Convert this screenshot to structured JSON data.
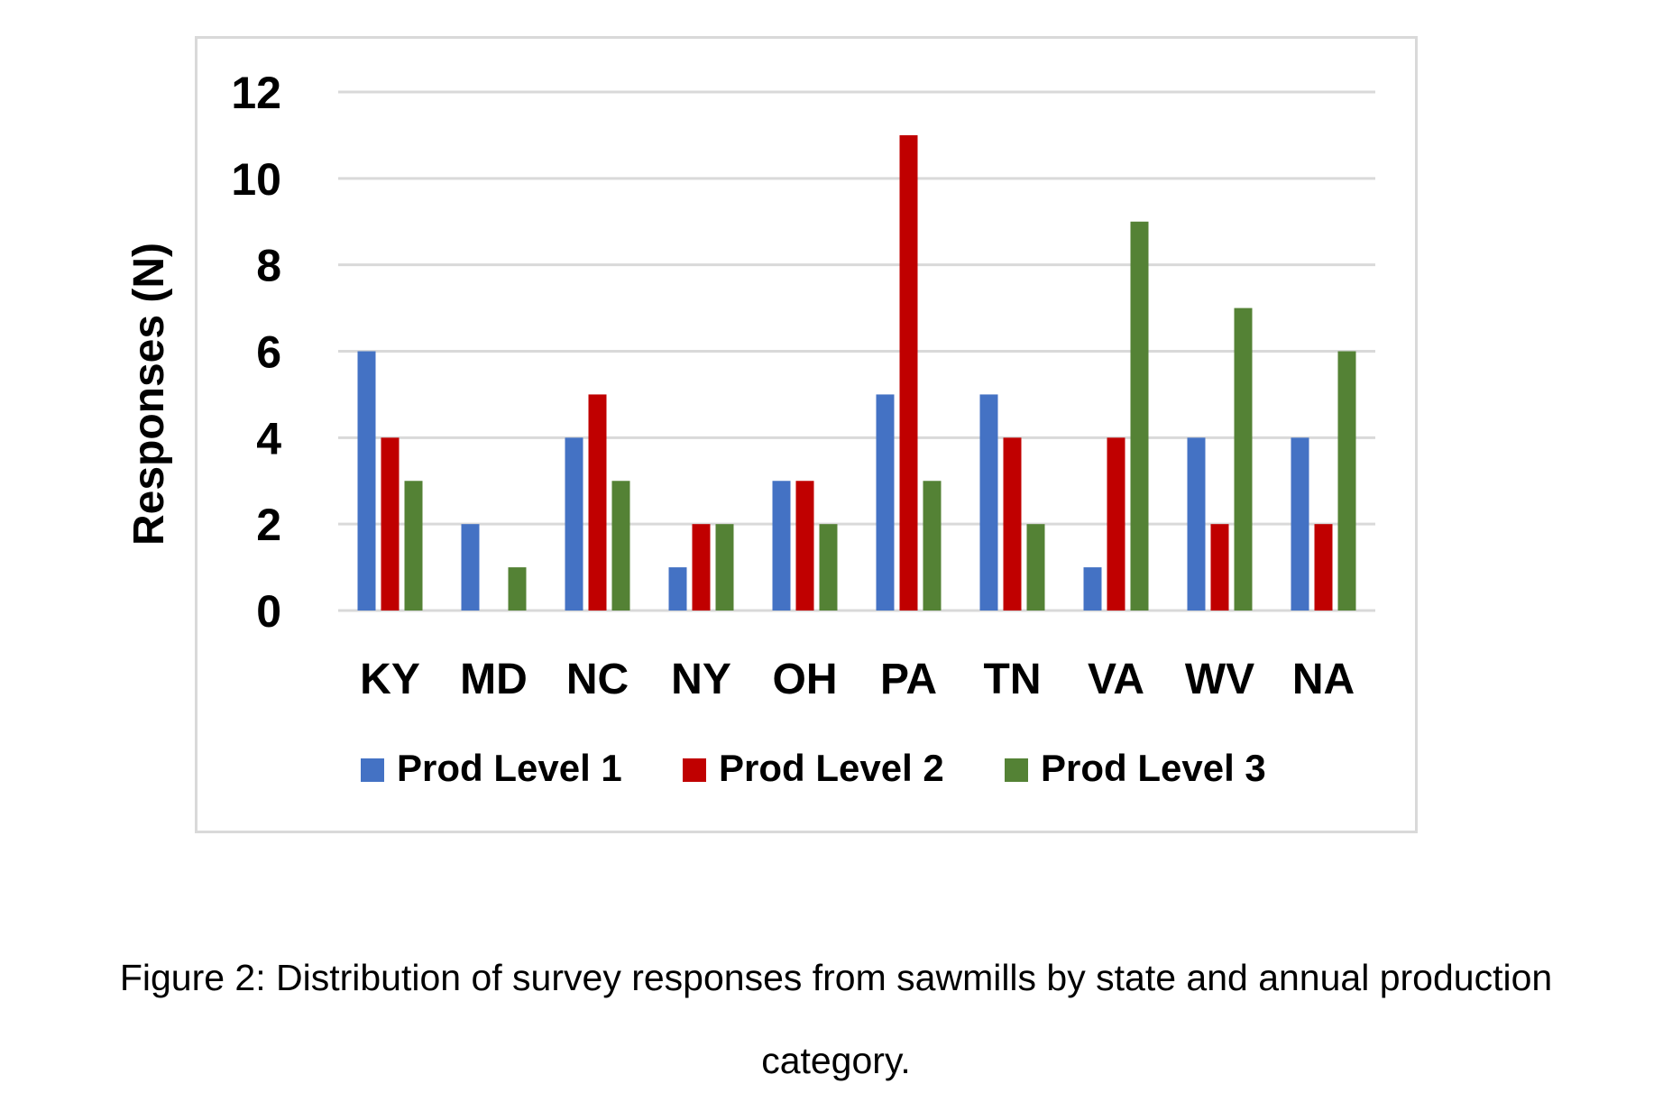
{
  "chart_data": {
    "type": "bar",
    "categories": [
      "KY",
      "MD",
      "NC",
      "NY",
      "OH",
      "PA",
      "TN",
      "VA",
      "WV",
      "NA"
    ],
    "series": [
      {
        "name": "Prod Level 1",
        "values": [
          6,
          2,
          4,
          1,
          3,
          5,
          5,
          1,
          4,
          4
        ],
        "color": "#4472c4"
      },
      {
        "name": "Prod Level 2",
        "values": [
          4,
          0,
          5,
          2,
          3,
          11,
          4,
          4,
          2,
          2
        ],
        "color": "#c00000"
      },
      {
        "name": "Prod Level 3",
        "values": [
          3,
          1,
          3,
          2,
          2,
          3,
          2,
          9,
          7,
          6
        ],
        "color": "#548235"
      }
    ],
    "ylabel": "Responses (N)",
    "xlabel": "",
    "ylim": [
      0,
      12
    ],
    "yticks": [
      0,
      2,
      4,
      6,
      8,
      10,
      12
    ],
    "grid": true,
    "gridline_color": "#d9d9d9",
    "legend_position": "bottom"
  },
  "caption": {
    "line1": "Figure 2: Distribution of survey responses from sawmills by state and annual production",
    "line2": "category."
  }
}
